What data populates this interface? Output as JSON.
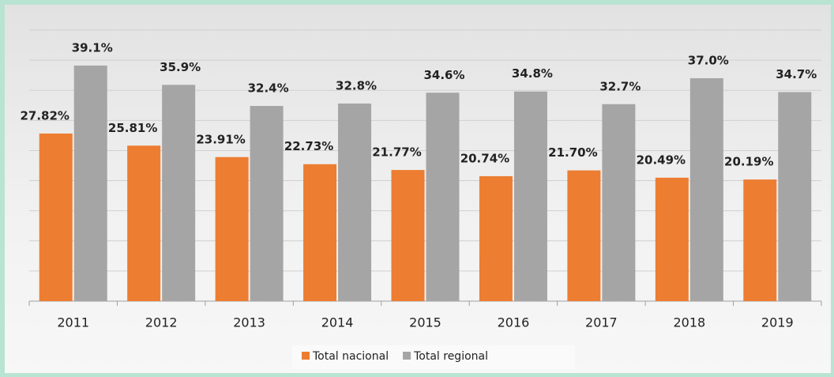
{
  "chart_data": {
    "type": "bar",
    "categories": [
      "2011",
      "2012",
      "2013",
      "2014",
      "2015",
      "2016",
      "2017",
      "2018",
      "2019"
    ],
    "series": [
      {
        "name": "Total nacional",
        "color": "#ed7d31",
        "values": [
          27.82,
          25.81,
          23.91,
          22.73,
          21.77,
          20.74,
          21.7,
          20.49,
          20.19
        ],
        "value_labels": [
          "27.82%",
          "25.81%",
          "23.91%",
          "22.73%",
          "21.77%",
          "20.74%",
          "21.70%",
          "20.49%",
          "20.19%"
        ]
      },
      {
        "name": "Total regional",
        "color": "#a5a5a5",
        "values": [
          39.1,
          35.9,
          32.4,
          32.8,
          34.6,
          34.8,
          32.7,
          37.0,
          34.7
        ],
        "value_labels": [
          "39.1%",
          "35.9%",
          "32.4%",
          "32.8%",
          "34.6%",
          "34.8%",
          "32.7%",
          "37.0%",
          "34.7%"
        ]
      }
    ],
    "ylim": [
      0,
      45
    ],
    "yticks": [
      0,
      5,
      10,
      15,
      20,
      25,
      30,
      35,
      40,
      45
    ],
    "grid": true,
    "legend": "bottom"
  }
}
